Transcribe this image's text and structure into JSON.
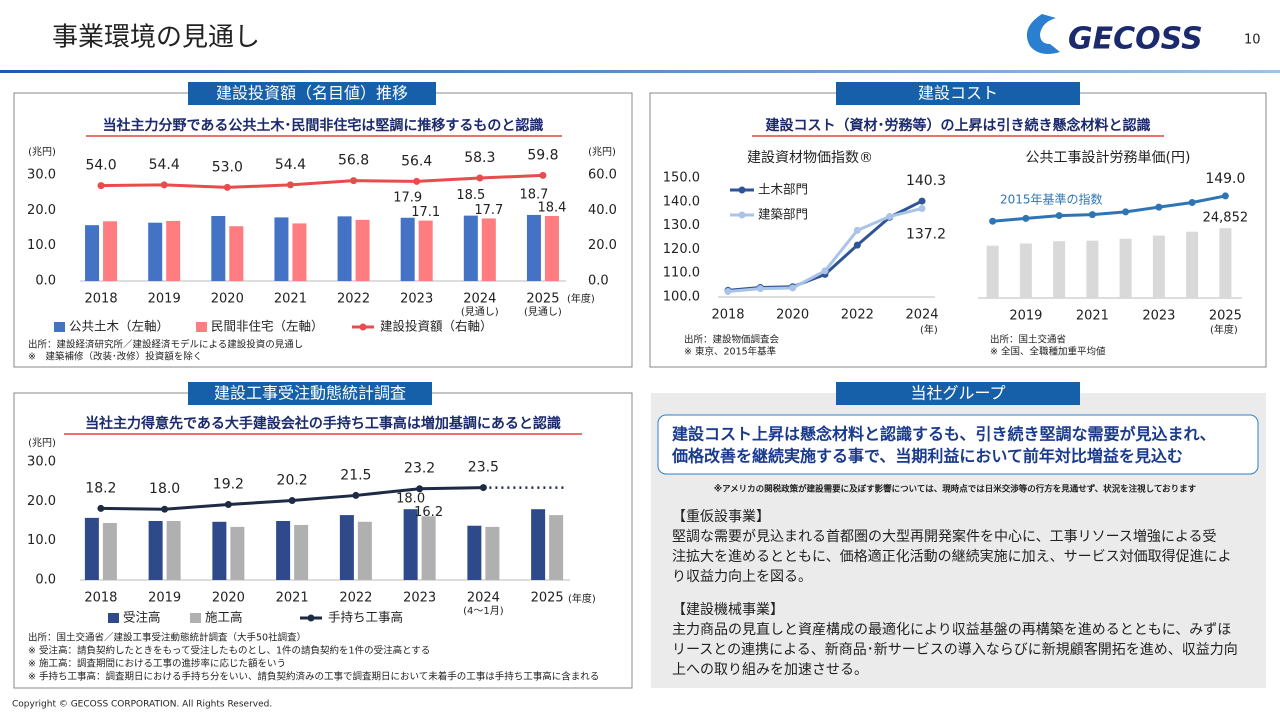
{
  "header": {
    "title": "事業環境の見通し",
    "logo": "GECOSS",
    "page": "10"
  },
  "sections": [
    {
      "label": "建設投資額（名目値）推移",
      "headline": "当社主力分野である公共土木･民間非住宅は堅調に推移するものと認識"
    },
    {
      "label": "建設コスト",
      "headline": "建設コスト（資材･労務等）の上昇は引き続き懸念材料と認識"
    },
    {
      "label": "建設工事受注動態統計調査",
      "headline": "当社主力得意先である大手建設会社の手持ち工事高は増加基調にあると認識"
    },
    {
      "label": "当社グループ"
    }
  ],
  "chart_data": [
    {
      "type": "bar",
      "categories": [
        "2018",
        "2019",
        "2020",
        "2021",
        "2022",
        "2023",
        "2024",
        "2025"
      ],
      "category_notes": [
        null,
        null,
        null,
        null,
        null,
        null,
        "(見通し)",
        "(見通し)"
      ],
      "xlabel": "(年度)",
      "ylabel": "(兆円)",
      "y2label": "(兆円)",
      "ylim": [
        0,
        30
      ],
      "yticks": [
        {
          "value": 0,
          "label": "0.0"
        },
        {
          "value": 10,
          "label": "10.0"
        },
        {
          "value": 20,
          "label": "20.0"
        },
        {
          "value": 30,
          "label": "30.0"
        }
      ],
      "y2lim": [
        0,
        60
      ],
      "y2ticks": [
        {
          "value": 0,
          "label": "0.0"
        },
        {
          "value": 20,
          "label": "20.0"
        },
        {
          "value": 40,
          "label": "40.0"
        },
        {
          "value": 60,
          "label": "60.0"
        }
      ],
      "grid": false,
      "series": [
        {
          "name": "公共土木（左軸）",
          "color": "#4472c4",
          "values": [
            15.8,
            16.5,
            18.4,
            18.0,
            18.3,
            17.9,
            18.5,
            18.7
          ],
          "value_labels": [
            null,
            null,
            null,
            null,
            null,
            "17.9",
            "18.5",
            "18.7"
          ]
        },
        {
          "name": "民間非住宅（左軸）",
          "color": "#ff7c80",
          "values": [
            16.9,
            17.0,
            15.5,
            16.3,
            17.3,
            17.1,
            17.7,
            18.4
          ],
          "value_labels": [
            null,
            null,
            null,
            null,
            null,
            "17.1",
            "17.7",
            "18.4"
          ]
        },
        {
          "name": "建設投資額（右軸）",
          "type": "line",
          "axis": "y2",
          "color": "#e84c4c",
          "values": [
            54.0,
            54.4,
            53.0,
            54.4,
            56.8,
            56.4,
            58.3,
            59.8
          ],
          "value_labels": [
            "54.0",
            "54.4",
            "53.0",
            "54.4",
            "56.8",
            "56.4",
            "58.3",
            "59.8"
          ]
        }
      ],
      "notes": [
        "出所：建設経済研究所／建設経済モデルによる建設投資の見通し",
        "※　建築補修（改装･改修）投資額を除く"
      ]
    },
    {
      "type": "line",
      "title": "建設資材物価指数®",
      "x": [
        2018,
        2019,
        2020,
        2021,
        2022,
        2023,
        2024
      ],
      "xlim": [
        2018,
        2024
      ],
      "xticks": [
        2018,
        2020,
        2022,
        2024
      ],
      "xlabel": "(年)",
      "ylim": [
        100,
        150
      ],
      "yticks": [
        {
          "value": 100,
          "label": "100.0"
        },
        {
          "value": 110,
          "label": "110.0"
        },
        {
          "value": 120,
          "label": "120.0"
        },
        {
          "value": 130,
          "label": "130.0"
        },
        {
          "value": 140,
          "label": "140.0"
        },
        {
          "value": 150,
          "label": "150.0"
        }
      ],
      "grid": false,
      "series": [
        {
          "name": "土木部門",
          "color": "#2f5597",
          "values": [
            102.8,
            104.0,
            104.3,
            109.5,
            121.8,
            133.5,
            140.3
          ],
          "value_labels": [
            null,
            null,
            null,
            null,
            null,
            null,
            "140.3"
          ]
        },
        {
          "name": "建築部門",
          "color": "#a9c4e8",
          "values": [
            102.3,
            103.5,
            103.8,
            111.0,
            128.0,
            133.8,
            137.2
          ],
          "value_labels": [
            null,
            null,
            null,
            null,
            null,
            null,
            "137.2"
          ]
        }
      ],
      "notes": [
        "出所：建設物価調査会",
        "※ 東京、2015年基準"
      ]
    },
    {
      "type": "bar",
      "title": "公共工事設計労務単価(円)",
      "categories": [
        null,
        "2019",
        null,
        "2021",
        null,
        "2023",
        null,
        "2025"
      ],
      "xlabel": "(年度)",
      "annotation": "2015年基準の指数",
      "ylim": [
        0,
        42000
      ],
      "y2lim": [
        40,
        166
      ],
      "grid": false,
      "series": [
        {
          "color": "#d9d9d9",
          "values": [
            18632,
            19392,
            20214,
            20409,
            21084,
            22227,
            23600,
            24852
          ],
          "value_labels": [
            null,
            null,
            null,
            null,
            null,
            null,
            null,
            "24,852"
          ]
        },
        {
          "type": "line",
          "axis": "y2",
          "color": "#2e75b6",
          "values": [
            122,
            125,
            128,
            129,
            132,
            137,
            142,
            149.0
          ],
          "value_labels": [
            null,
            null,
            null,
            null,
            null,
            null,
            null,
            "149.0"
          ]
        }
      ],
      "notes": [
        "出所：国土交通省",
        "※ 全国、全職種加重平均値"
      ]
    },
    {
      "type": "bar",
      "categories": [
        "2018",
        "2019",
        "2020",
        "2021",
        "2022",
        "2023",
        "2024",
        "2025"
      ],
      "category_notes": [
        null,
        null,
        null,
        null,
        null,
        null,
        "(4～1月)",
        null
      ],
      "xlabel": "(年度)",
      "ylabel": "(兆円)",
      "ylim": [
        0,
        30
      ],
      "yticks": [
        {
          "value": 0,
          "label": "0.0"
        },
        {
          "value": 10,
          "label": "10.0"
        },
        {
          "value": 20,
          "label": "20.0"
        },
        {
          "value": 30,
          "label": "30.0"
        }
      ],
      "grid": false,
      "series": [
        {
          "name": "受注高",
          "color": "#2e4a8b",
          "values": [
            15.8,
            15.0,
            14.8,
            15.0,
            16.5,
            18.0,
            13.8,
            18.0
          ],
          "value_labels": [
            null,
            null,
            null,
            null,
            null,
            "18.0",
            null,
            null
          ]
        },
        {
          "name": "施工高",
          "color": "#b0b0b0",
          "values": [
            14.5,
            15.0,
            13.5,
            14.0,
            14.8,
            16.2,
            13.5,
            16.5
          ],
          "value_labels": [
            null,
            null,
            null,
            null,
            null,
            "16.2",
            null,
            null
          ]
        },
        {
          "name": "手持ち工事高",
          "type": "line",
          "color": "#1f2a44",
          "values": [
            18.2,
            18.0,
            19.2,
            20.2,
            21.5,
            23.2,
            23.5,
            null
          ],
          "value_labels": [
            "18.2",
            "18.0",
            "19.2",
            "20.2",
            "21.5",
            "23.2",
            "23.5",
            null
          ]
        }
      ],
      "notes": [
        "出所：国土交通省／建設工事受注動態統計調査（大手50社調査）",
        "※  受注高：請負契約したときをもって受注したものとし、1件の請負契約を1件の受注高とする",
        "※  施工高：調査期間における工事の進捗率に応じた額をいう",
        "※  手持ち工事高：調査期日における手持ち分をいい、請負契約済みの工事で調査期日において未着手の工事は手持ち工事高に含まれる"
      ]
    }
  ],
  "group": {
    "headline": [
      "建設コスト上昇は懸念材料と認識するも、引き続き堅調な需要が見込まれ、",
      "価格改善を継続実施する事で、当期利益において前年対比増益を見込む"
    ],
    "note": "※アメリカの関税政策が建設需要に及ぼす影響については、現時点では日米交渉等の行方を見通せず、状況を注視しております",
    "blocks": [
      {
        "heading": "【重仮設事業】",
        "lines": [
          "堅調な需要が見込まれる首都圏の大型再開発案件を中心に、工事リソース増強による受",
          "注拡大を進めるとともに、価格適正化活動の継続実施に加え、サービス対価取得促進によ",
          "り収益力向上を図る。"
        ]
      },
      {
        "heading": "【建設機械事業】",
        "lines": [
          "主力商品の見直しと資産構成の最適化により収益基盤の再構築を進めるとともに、みずほ",
          "リースとの連携による、新商品･新サービスの導入ならびに新規顧客開拓を進め、収益力向",
          "上への取り組みを加速させる。"
        ]
      }
    ]
  },
  "footer": "Copyright © GECOSS CORPORATION. All Rights Reserved."
}
